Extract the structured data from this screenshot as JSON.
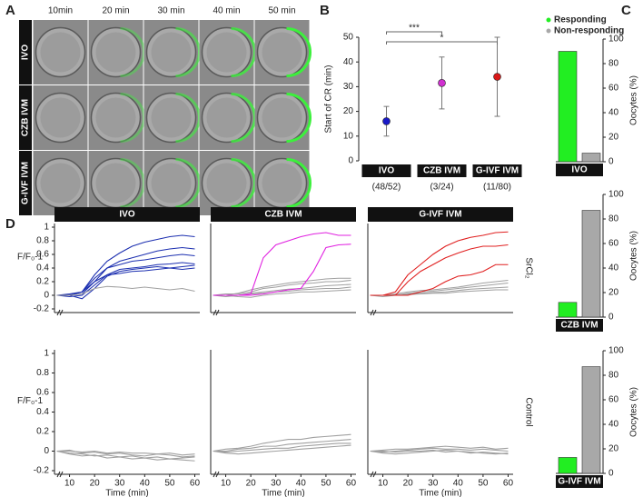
{
  "panel_labels": [
    "A",
    "B",
    "C",
    "D"
  ],
  "image_grid": {
    "columns": [
      "10min",
      "20 min",
      "30 min",
      "40 min",
      "50 min"
    ],
    "rows": [
      "IVO",
      "CZB IVM",
      "G-IVF IVM"
    ]
  },
  "chart_data": [
    {
      "type": "dot",
      "ylabel": "Start of CR (min)",
      "categories": [
        "IVO",
        "CZB IVM",
        "G-IVF IVM"
      ],
      "category_notes": [
        "(48/52)",
        "(3/24)",
        "(11/80)"
      ],
      "values": [
        16,
        31.5,
        34
      ],
      "lower": [
        10,
        21,
        18
      ],
      "upper": [
        22,
        42,
        50
      ],
      "colors": [
        "#1a1ac8",
        "#d030d0",
        "#d81818"
      ],
      "annotations": [
        "*",
        "***"
      ],
      "ylim": [
        0,
        50
      ],
      "yticks": [
        0,
        10,
        20,
        30,
        40,
        50
      ]
    },
    {
      "type": "bar",
      "ylabel": "Oocytes (%)",
      "categories": [
        "IVO"
      ],
      "series": [
        {
          "name": "Responding",
          "color": "#22ee22",
          "values": [
            90
          ]
        },
        {
          "name": "Non-responding",
          "color": "#a8a8a8",
          "values": [
            7
          ]
        }
      ],
      "ylim": [
        0,
        100
      ],
      "yticks": [
        0,
        20,
        40,
        60,
        80,
        100
      ]
    },
    {
      "type": "bar",
      "ylabel": "Oocytes (%)",
      "categories": [
        "CZB IVM"
      ],
      "series": [
        {
          "color": "#22ee22",
          "values": [
            12
          ]
        },
        {
          "color": "#a8a8a8",
          "values": [
            87
          ]
        }
      ],
      "ylim": [
        0,
        100
      ],
      "yticks": [
        0,
        20,
        40,
        60,
        80,
        100
      ]
    },
    {
      "type": "bar",
      "ylabel": "Oocytes (%)",
      "categories": [
        "G-IVF IVM"
      ],
      "series": [
        {
          "color": "#22ee22",
          "values": [
            13
          ]
        },
        {
          "color": "#a8a8a8",
          "values": [
            87
          ]
        }
      ],
      "ylim": [
        0,
        100
      ],
      "yticks": [
        0,
        20,
        40,
        60,
        80,
        100
      ]
    },
    {
      "type": "line",
      "title": "IVO",
      "ylabel": "F/F₀-1",
      "x": [
        5,
        10,
        15,
        20,
        25,
        30,
        35,
        40,
        45,
        50,
        55,
        60
      ],
      "xlim": [
        4,
        62
      ],
      "ylim": [
        -0.2,
        1
      ],
      "yticks": [
        -0.2,
        0,
        0.2,
        0.4,
        0.6,
        0.8,
        1
      ],
      "series": [
        {
          "color": "#1c2fb0",
          "values": [
            0,
            0,
            0.05,
            0.3,
            0.5,
            0.62,
            0.72,
            0.78,
            0.82,
            0.86,
            0.88,
            0.86
          ]
        },
        {
          "color": "#1c2fb0",
          "values": [
            0,
            0.01,
            0.02,
            0.2,
            0.4,
            0.5,
            0.55,
            0.6,
            0.65,
            0.68,
            0.7,
            0.68
          ]
        },
        {
          "color": "#1c2fb0",
          "values": [
            0,
            0,
            0.05,
            0.25,
            0.4,
            0.45,
            0.5,
            0.52,
            0.55,
            0.58,
            0.6,
            0.58
          ]
        },
        {
          "color": "#1c2fb0",
          "values": [
            0,
            -0.02,
            0,
            0.15,
            0.3,
            0.38,
            0.4,
            0.42,
            0.45,
            0.46,
            0.48,
            0.46
          ]
        },
        {
          "color": "#1c2fb0",
          "values": [
            0,
            0,
            -0.05,
            0.1,
            0.28,
            0.35,
            0.38,
            0.4,
            0.42,
            0.4,
            0.42,
            0.44
          ]
        },
        {
          "color": "#1c2fb0",
          "values": [
            0,
            0.02,
            0.05,
            0.2,
            0.3,
            0.32,
            0.35,
            0.36,
            0.38,
            0.4,
            0.38,
            0.4
          ]
        },
        {
          "color": "#a0a0a0",
          "values": [
            0,
            0,
            0.02,
            0.1,
            0.13,
            0.12,
            0.1,
            0.12,
            0.1,
            0.08,
            0.1,
            0.06
          ]
        }
      ]
    },
    {
      "type": "line",
      "title": "CZB IVM",
      "x": [
        5,
        10,
        15,
        20,
        25,
        30,
        35,
        40,
        45,
        50,
        55,
        60
      ],
      "xlim": [
        4,
        62
      ],
      "ylim": [
        -0.2,
        1
      ],
      "series": [
        {
          "color": "#a0a0a0",
          "values": [
            0,
            0,
            0.03,
            0.08,
            0.12,
            0.15,
            0.18,
            0.2,
            0.22,
            0.24,
            0.25,
            0.25
          ]
        },
        {
          "color": "#a0a0a0",
          "values": [
            0,
            0.02,
            0.02,
            0.05,
            0.1,
            0.12,
            0.15,
            0.17,
            0.18,
            0.2,
            0.2,
            0.22
          ]
        },
        {
          "color": "#a0a0a0",
          "values": [
            0,
            0,
            0,
            0.03,
            0.05,
            0.07,
            0.09,
            0.1,
            0.12,
            0.14,
            0.15,
            0.16
          ]
        },
        {
          "color": "#a0a0a0",
          "values": [
            0,
            -0.02,
            0,
            0.02,
            0.03,
            0.05,
            0.06,
            0.08,
            0.09,
            0.1,
            0.1,
            0.12
          ]
        },
        {
          "color": "#a0a0a0",
          "values": [
            0,
            0,
            -0.02,
            -0.03,
            0,
            0.02,
            0.03,
            0.05,
            0.05,
            0.06,
            0.07,
            0.08
          ]
        },
        {
          "color": "#e020e0",
          "values": [
            0,
            0,
            0,
            0.02,
            0.55,
            0.74,
            0.8,
            0.86,
            0.9,
            0.92,
            0.88,
            0.88
          ]
        },
        {
          "color": "#e020e0",
          "values": [
            0,
            0,
            0,
            0,
            0.02,
            0.05,
            0.08,
            0.1,
            0.35,
            0.7,
            0.74,
            0.75
          ]
        }
      ]
    },
    {
      "type": "line",
      "title": "G-IVF IVM",
      "row_label": "SrCl₂",
      "x": [
        5,
        10,
        15,
        20,
        25,
        30,
        35,
        40,
        45,
        50,
        55,
        60
      ],
      "xlim": [
        4,
        62
      ],
      "ylim": [
        -0.2,
        1
      ],
      "series": [
        {
          "color": "#a0a0a0",
          "values": [
            0,
            0,
            0.02,
            0.05,
            0.07,
            0.08,
            0.1,
            0.12,
            0.15,
            0.18,
            0.2,
            0.22
          ]
        },
        {
          "color": "#a0a0a0",
          "values": [
            0,
            0,
            0,
            0.03,
            0.05,
            0.06,
            0.08,
            0.1,
            0.12,
            0.14,
            0.16,
            0.18
          ]
        },
        {
          "color": "#a0a0a0",
          "values": [
            0,
            -0.02,
            0,
            0.02,
            0.03,
            0.04,
            0.05,
            0.07,
            0.09,
            0.1,
            0.11,
            0.12
          ]
        },
        {
          "color": "#a0a0a0",
          "values": [
            0,
            0,
            0.01,
            0.01,
            0.02,
            0.03,
            0.03,
            0.05,
            0.06,
            0.07,
            0.08,
            0.08
          ]
        },
        {
          "color": "#e02020",
          "values": [
            0,
            0,
            0.05,
            0.3,
            0.45,
            0.6,
            0.72,
            0.8,
            0.85,
            0.88,
            0.92,
            0.93
          ]
        },
        {
          "color": "#e02020",
          "values": [
            0,
            0,
            0,
            0.2,
            0.35,
            0.45,
            0.55,
            0.62,
            0.68,
            0.72,
            0.72,
            0.74
          ]
        },
        {
          "color": "#e02020",
          "values": [
            0,
            0,
            0,
            0,
            0.05,
            0.1,
            0.2,
            0.28,
            0.3,
            0.35,
            0.45,
            0.45
          ]
        }
      ]
    },
    {
      "type": "line",
      "ylabel": "F/F₀-1",
      "xlabel": "Time (min)",
      "x": [
        5,
        10,
        15,
        20,
        25,
        30,
        35,
        40,
        45,
        50,
        55,
        60
      ],
      "xlim": [
        4,
        62
      ],
      "ylim": [
        -0.2,
        1
      ],
      "yticks": [
        -0.2,
        0,
        0.2,
        0.4,
        0.6,
        0.8,
        1
      ],
      "xticks": [
        10,
        20,
        30,
        40,
        50,
        60
      ],
      "series": [
        {
          "color": "#a0a0a0",
          "values": [
            0,
            0.01,
            -0.02,
            -0.01,
            -0.03,
            -0.02,
            -0.04,
            -0.05,
            -0.03,
            -0.04,
            -0.06,
            -0.05
          ]
        },
        {
          "color": "#a0a0a0",
          "values": [
            0,
            -0.02,
            -0.03,
            -0.05,
            -0.04,
            -0.06,
            -0.05,
            -0.07,
            -0.06,
            -0.08,
            -0.07,
            -0.06
          ]
        },
        {
          "color": "#a0a0a0",
          "values": [
            0,
            0,
            -0.01,
            0,
            -0.02,
            -0.01,
            -0.02,
            -0.02,
            -0.03,
            -0.02,
            -0.04,
            -0.03
          ]
        },
        {
          "color": "#a0a0a0",
          "values": [
            0,
            -0.03,
            -0.05,
            -0.04,
            -0.07,
            -0.06,
            -0.08,
            -0.07,
            -0.09,
            -0.08,
            -0.09,
            -0.1
          ]
        }
      ]
    },
    {
      "type": "line",
      "xlabel": "Time (min)",
      "x": [
        5,
        10,
        15,
        20,
        25,
        30,
        35,
        40,
        45,
        50,
        55,
        60
      ],
      "xlim": [
        4,
        62
      ],
      "ylim": [
        -0.2,
        1
      ],
      "xticks": [
        10,
        20,
        30,
        40,
        50,
        60
      ],
      "series": [
        {
          "color": "#a0a0a0",
          "values": [
            0,
            0.02,
            0.03,
            0.05,
            0.08,
            0.1,
            0.12,
            0.12,
            0.14,
            0.15,
            0.16,
            0.17
          ]
        },
        {
          "color": "#a0a0a0",
          "values": [
            0,
            0,
            0.02,
            0.03,
            0.05,
            0.05,
            0.07,
            0.08,
            0.09,
            0.1,
            0.11,
            0.12
          ]
        },
        {
          "color": "#a0a0a0",
          "values": [
            0,
            -0.01,
            0,
            0.01,
            0.02,
            0.03,
            0.03,
            0.05,
            0.06,
            0.07,
            0.08,
            0.08
          ]
        },
        {
          "color": "#a0a0a0",
          "values": [
            0,
            -0.02,
            -0.03,
            -0.02,
            -0.01,
            0,
            0.01,
            0.02,
            0.03,
            0.04,
            0.05,
            0.06
          ]
        }
      ]
    },
    {
      "type": "line",
      "xlabel": "Time (min)",
      "row_label": "Control",
      "x": [
        5,
        10,
        15,
        20,
        25,
        30,
        35,
        40,
        45,
        50,
        55,
        60
      ],
      "xlim": [
        4,
        62
      ],
      "ylim": [
        -0.2,
        1
      ],
      "xticks": [
        10,
        20,
        30,
        40,
        50,
        60
      ],
      "series": [
        {
          "color": "#a0a0a0",
          "values": [
            0,
            0.01,
            0.02,
            0.02,
            0.03,
            0.04,
            0.05,
            0.04,
            0.03,
            0.04,
            0.02,
            0.03
          ]
        },
        {
          "color": "#a0a0a0",
          "values": [
            0,
            -0.01,
            0,
            0.01,
            0.02,
            0.03,
            0.02,
            0.02,
            0.01,
            0.02,
            0.01,
            0
          ]
        },
        {
          "color": "#a0a0a0",
          "values": [
            0,
            -0.02,
            -0.03,
            -0.02,
            -0.01,
            0,
            0.01,
            0,
            -0.01,
            -0.02,
            -0.03,
            -0.02
          ]
        },
        {
          "color": "#a0a0a0",
          "values": [
            0,
            0,
            -0.01,
            0,
            0,
            0.01,
            -0.01,
            0,
            -0.02,
            -0.01,
            -0.02,
            -0.03
          ]
        }
      ]
    }
  ]
}
